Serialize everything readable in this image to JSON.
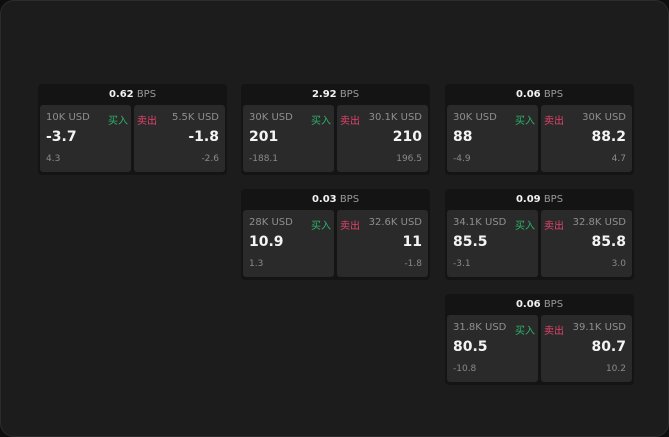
{
  "unit": "BPS",
  "buy_label": "买入",
  "sell_label": "卖出",
  "colors": {
    "buy": "#2db36a",
    "sell": "#e0436b"
  },
  "cards": [
    {
      "spread": "0.62",
      "buy": {
        "qty": "10K USD",
        "price": "-3.7",
        "change": "4.3"
      },
      "sell": {
        "qty": "5.5K USD",
        "price": "-1.8",
        "change": "-2.6"
      }
    },
    {
      "spread": "2.92",
      "buy": {
        "qty": "30K USD",
        "price": "201",
        "change": "-188.1"
      },
      "sell": {
        "qty": "30.1K USD",
        "price": "210",
        "change": "196.5"
      }
    },
    {
      "spread": "0.06",
      "buy": {
        "qty": "30K USD",
        "price": "88",
        "change": "-4.9"
      },
      "sell": {
        "qty": "30K USD",
        "price": "88.2",
        "change": "4.7"
      }
    },
    {
      "spread": "0.03",
      "buy": {
        "qty": "28K USD",
        "price": "10.9",
        "change": "1.3"
      },
      "sell": {
        "qty": "32.6K USD",
        "price": "11",
        "change": "-1.8"
      }
    },
    {
      "spread": "0.09",
      "buy": {
        "qty": "34.1K USD",
        "price": "85.5",
        "change": "-3.1"
      },
      "sell": {
        "qty": "32.8K USD",
        "price": "85.8",
        "change": "3.0"
      }
    },
    {
      "spread": "0.06",
      "buy": {
        "qty": "31.8K USD",
        "price": "80.5",
        "change": "-10.8"
      },
      "sell": {
        "qty": "39.1K USD",
        "price": "80.7",
        "change": "10.2"
      }
    }
  ]
}
